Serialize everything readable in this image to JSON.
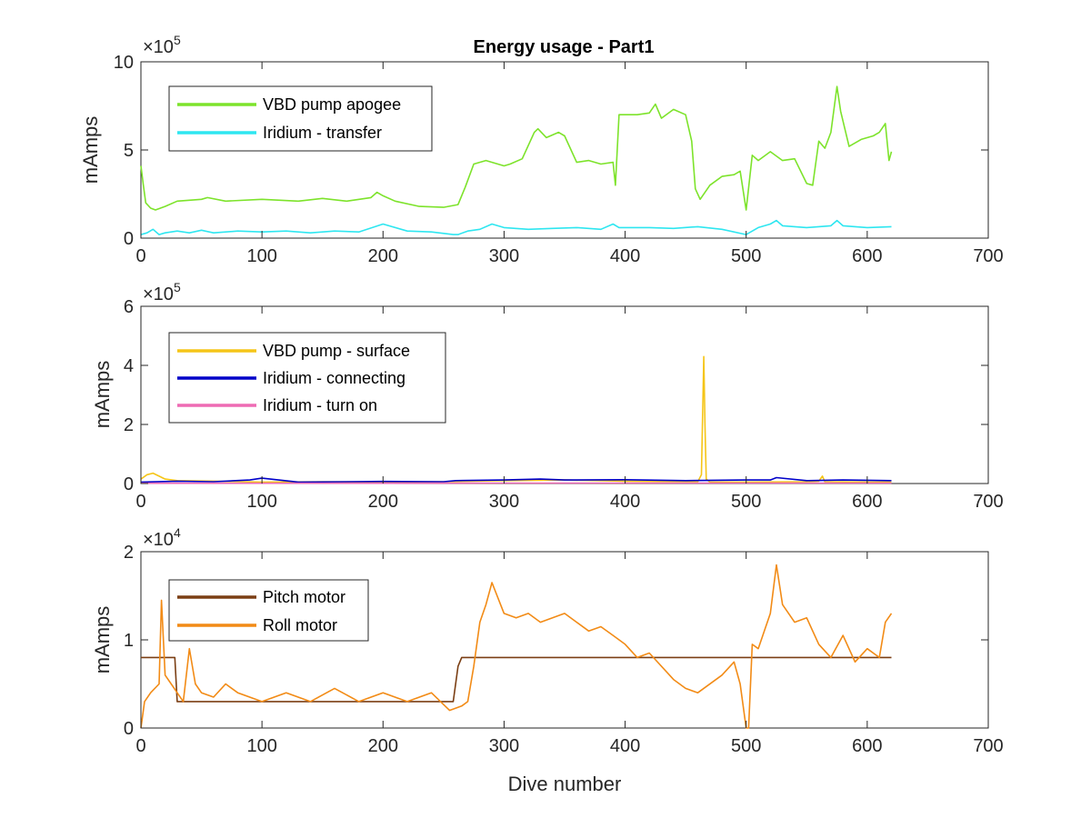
{
  "chart_data": [
    {
      "type": "line",
      "title": "Energy usage - Part1",
      "xlabel": "",
      "ylabel": "mAmps",
      "xlim": [
        0,
        700
      ],
      "ylim": [
        0,
        1000000
      ],
      "x_ticks": [
        "0",
        "100",
        "200",
        "300",
        "400",
        "500",
        "600",
        "700"
      ],
      "y_ticks": [
        "0",
        "5",
        "10"
      ],
      "y_exponent": {
        "base": "×10",
        "power": "5"
      },
      "legend_position": "top-left",
      "grid": false,
      "series": [
        {
          "name": "VBD pump apogee",
          "color": "#7de32b",
          "x": [
            0,
            2,
            4,
            8,
            12,
            20,
            30,
            50,
            55,
            70,
            100,
            130,
            150,
            170,
            190,
            195,
            200,
            210,
            230,
            250,
            262,
            268,
            275,
            285,
            300,
            305,
            315,
            325,
            328,
            335,
            345,
            350,
            360,
            370,
            380,
            390,
            392,
            395,
            400,
            410,
            420,
            425,
            430,
            440,
            450,
            455,
            458,
            462,
            470,
            480,
            490,
            495,
            500,
            505,
            510,
            520,
            530,
            540,
            550,
            555,
            560,
            565,
            570,
            575,
            578,
            585,
            595,
            605,
            610,
            615,
            618,
            620
          ],
          "y": [
            410000,
            300000,
            200000,
            170000,
            160000,
            180000,
            210000,
            220000,
            230000,
            210000,
            220000,
            210000,
            225000,
            210000,
            230000,
            260000,
            240000,
            210000,
            180000,
            175000,
            190000,
            290000,
            420000,
            440000,
            410000,
            420000,
            450000,
            600000,
            620000,
            570000,
            600000,
            580000,
            430000,
            440000,
            420000,
            430000,
            300000,
            700000,
            700000,
            700000,
            710000,
            760000,
            680000,
            730000,
            700000,
            550000,
            280000,
            220000,
            300000,
            350000,
            360000,
            380000,
            160000,
            470000,
            440000,
            490000,
            440000,
            450000,
            310000,
            300000,
            550000,
            510000,
            600000,
            860000,
            720000,
            520000,
            560000,
            580000,
            600000,
            650000,
            440000,
            490000
          ]
        },
        {
          "name": "Iridium - transfer",
          "color": "#2ee6f0",
          "x": [
            0,
            5,
            10,
            15,
            20,
            30,
            40,
            50,
            60,
            80,
            100,
            120,
            140,
            160,
            180,
            200,
            220,
            240,
            258,
            262,
            270,
            280,
            290,
            300,
            320,
            340,
            360,
            380,
            390,
            395,
            400,
            420,
            440,
            460,
            480,
            500,
            510,
            520,
            525,
            530,
            550,
            570,
            575,
            580,
            600,
            620
          ],
          "y": [
            20000,
            30000,
            50000,
            20000,
            30000,
            40000,
            30000,
            45000,
            30000,
            40000,
            35000,
            40000,
            30000,
            40000,
            35000,
            80000,
            40000,
            35000,
            20000,
            20000,
            40000,
            50000,
            80000,
            60000,
            50000,
            55000,
            60000,
            50000,
            80000,
            60000,
            60000,
            60000,
            55000,
            65000,
            50000,
            20000,
            60000,
            80000,
            100000,
            70000,
            60000,
            70000,
            100000,
            70000,
            60000,
            65000
          ]
        }
      ]
    },
    {
      "type": "line",
      "title": "",
      "xlabel": "",
      "ylabel": "mAmps",
      "xlim": [
        0,
        700
      ],
      "ylim": [
        0,
        600000
      ],
      "x_ticks": [
        "0",
        "100",
        "200",
        "300",
        "400",
        "500",
        "600",
        "700"
      ],
      "y_ticks": [
        "0",
        "2",
        "4",
        "6"
      ],
      "y_exponent": {
        "base": "×10",
        "power": "5"
      },
      "legend_position": "top-left",
      "grid": false,
      "series": [
        {
          "name": "VBD pump - surface",
          "color": "#f5c518",
          "x": [
            0,
            5,
            10,
            15,
            20,
            30,
            60,
            100,
            150,
            200,
            250,
            300,
            350,
            400,
            460,
            463,
            465,
            466,
            467,
            470,
            500,
            550,
            560,
            563,
            565,
            600,
            620
          ],
          "y": [
            15000,
            30000,
            35000,
            25000,
            15000,
            10000,
            8000,
            5000,
            6000,
            5000,
            6000,
            10000,
            12000,
            8000,
            6000,
            30000,
            430000,
            200000,
            15000,
            5000,
            5000,
            6000,
            8000,
            25000,
            6000,
            5000,
            5000
          ]
        },
        {
          "name": "Iridium - connecting",
          "color": "#0000c8",
          "x": [
            0,
            30,
            60,
            90,
            100,
            130,
            200,
            250,
            260,
            300,
            330,
            350,
            400,
            450,
            500,
            520,
            525,
            550,
            580,
            620
          ],
          "y": [
            5000,
            8000,
            6000,
            12000,
            18000,
            5000,
            7000,
            6000,
            10000,
            12000,
            15000,
            12000,
            13000,
            10000,
            12000,
            12000,
            20000,
            10000,
            12000,
            10000
          ]
        },
        {
          "name": "Iridium - turn on",
          "color": "#ee6bb4",
          "x": [
            0,
            100,
            200,
            300,
            400,
            500,
            600,
            620
          ],
          "y": [
            1000,
            1000,
            1000,
            1500,
            1500,
            1500,
            1500,
            1500
          ]
        }
      ]
    },
    {
      "type": "line",
      "title": "",
      "xlabel": "Dive number",
      "ylabel": "mAmps",
      "xlim": [
        0,
        700
      ],
      "ylim": [
        0,
        20000
      ],
      "x_ticks": [
        "0",
        "100",
        "200",
        "300",
        "400",
        "500",
        "600",
        "700"
      ],
      "y_ticks": [
        "0",
        "1",
        "2"
      ],
      "y_exponent": {
        "base": "×10",
        "power": "4"
      },
      "legend_position": "top-left",
      "grid": false,
      "series": [
        {
          "name": "Pitch motor",
          "color": "#7b3f14",
          "x": [
            0,
            28,
            30,
            40,
            60,
            80,
            100,
            120,
            140,
            160,
            180,
            200,
            220,
            240,
            255,
            258,
            262,
            265,
            275,
            300,
            350,
            400,
            450,
            500,
            550,
            600,
            620
          ],
          "y": [
            8000,
            8000,
            3000,
            3000,
            3000,
            3000,
            3000,
            3000,
            3000,
            3000,
            3000,
            3000,
            3000,
            3000,
            3000,
            3000,
            7000,
            8000,
            8000,
            8000,
            8000,
            8000,
            8000,
            8000,
            8000,
            8000,
            8000
          ]
        },
        {
          "name": "Roll motor",
          "color": "#f28b16",
          "x": [
            0,
            3,
            8,
            15,
            17,
            20,
            25,
            30,
            35,
            40,
            45,
            50,
            60,
            70,
            80,
            100,
            120,
            140,
            160,
            180,
            200,
            220,
            240,
            255,
            265,
            270,
            275,
            280,
            285,
            290,
            300,
            310,
            320,
            330,
            340,
            350,
            360,
            370,
            380,
            390,
            400,
            410,
            420,
            440,
            450,
            460,
            480,
            490,
            495,
            500,
            502,
            505,
            510,
            520,
            525,
            530,
            540,
            550,
            560,
            570,
            580,
            590,
            600,
            610,
            615,
            620
          ],
          "y": [
            0,
            3000,
            4000,
            5000,
            14500,
            6000,
            5000,
            4000,
            3000,
            9000,
            5000,
            4000,
            3500,
            5000,
            4000,
            3000,
            4000,
            3000,
            4500,
            3000,
            4000,
            3000,
            4000,
            2000,
            2500,
            3000,
            7000,
            12000,
            14000,
            16500,
            13000,
            12500,
            13000,
            12000,
            12500,
            13000,
            12000,
            11000,
            11500,
            10500,
            9500,
            8000,
            8500,
            5500,
            4500,
            4000,
            6000,
            7500,
            5000,
            0,
            0,
            9500,
            9000,
            13000,
            18500,
            14000,
            12000,
            12500,
            9500,
            8000,
            10500,
            7500,
            9000,
            8000,
            12000,
            13000
          ]
        }
      ]
    }
  ]
}
